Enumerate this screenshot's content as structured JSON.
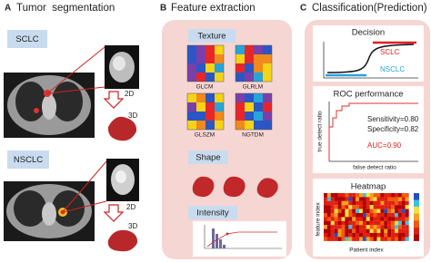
{
  "panel_a": {
    "letter": "A",
    "title": "Tumor  segmentation",
    "sclc": {
      "label": "SCLC",
      "d2": "2D",
      "d3": "3D"
    },
    "nsclc": {
      "label": "NSCLC",
      "d2": "2D",
      "d3": "3D"
    }
  },
  "panel_b": {
    "letter": "B",
    "title": "Feature extraction",
    "texture": {
      "label": "Texture",
      "matrices": [
        "GLCM",
        "GLRLM",
        "GLSZM",
        "NGTDM"
      ]
    },
    "shape": {
      "label": "Shape"
    },
    "intensity": {
      "label": "Intensity"
    }
  },
  "panel_c": {
    "letter": "C",
    "title": "Classification(Prediction)",
    "decision": {
      "title": "Decision",
      "classes": [
        "SCLC",
        "NSCLC"
      ]
    },
    "roc": {
      "title": "ROC performance",
      "y_label": "true detect ratio",
      "x_label": "false detect ratio",
      "sensitivity": "Sensitivity=0.80",
      "specificity": "Specificity=0.82",
      "auc": "AUC=0.90"
    },
    "heatmap": {
      "title": "Heatmap",
      "y_label": "feature index",
      "x_label": "Patient index"
    }
  }
}
